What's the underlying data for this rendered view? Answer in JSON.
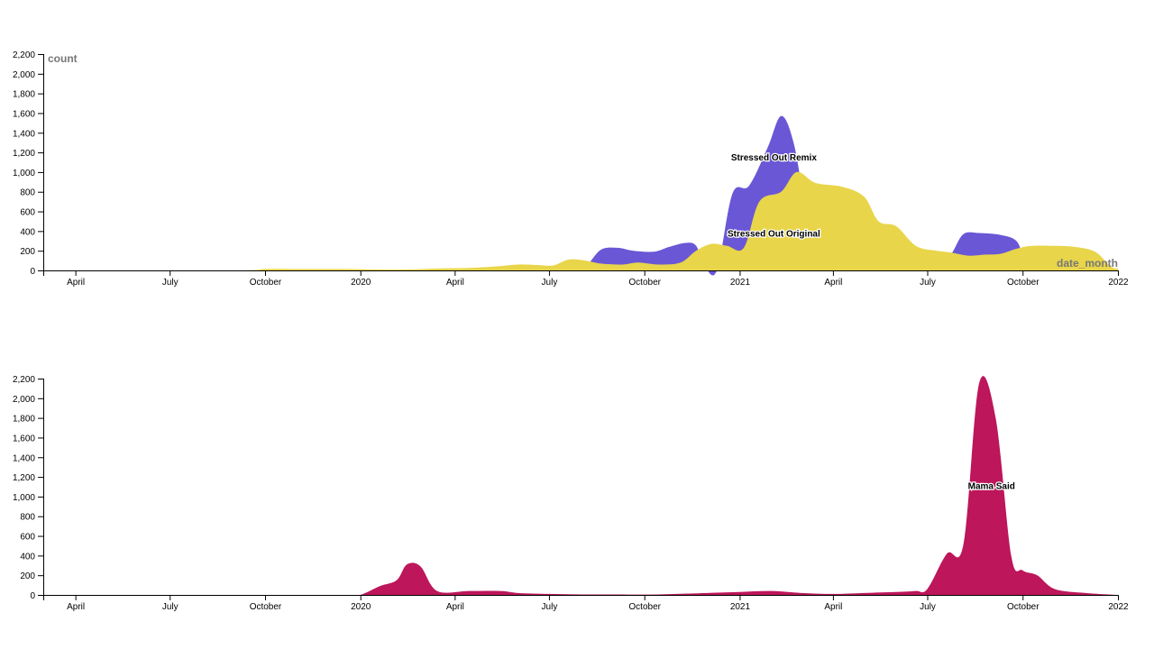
{
  "chart_data": [
    {
      "type": "area",
      "stacked": false,
      "x_axis": {
        "label": "date_month",
        "range": [
          "2019-03-01",
          "2022-01-01"
        ]
      },
      "y_axis": {
        "label": "count",
        "range": [
          0,
          2200
        ],
        "tick_step": 200
      },
      "x_ticks": [
        {
          "date": "2019-04-01",
          "label": "April"
        },
        {
          "date": "2019-07-01",
          "label": "July"
        },
        {
          "date": "2019-10-01",
          "label": "October"
        },
        {
          "date": "2020-01-01",
          "label": "2020"
        },
        {
          "date": "2020-04-01",
          "label": "April"
        },
        {
          "date": "2020-07-01",
          "label": "July"
        },
        {
          "date": "2020-10-01",
          "label": "October"
        },
        {
          "date": "2021-01-01",
          "label": "2021"
        },
        {
          "date": "2021-04-01",
          "label": "April"
        },
        {
          "date": "2021-07-01",
          "label": "July"
        },
        {
          "date": "2021-10-01",
          "label": "October"
        },
        {
          "date": "2022-01-01",
          "label": "2022"
        }
      ],
      "y_ticks": [
        "0",
        "200",
        "400",
        "600",
        "800",
        "1,000",
        "1,200",
        "1,400",
        "1,600",
        "1,800",
        "2,000",
        "2,200"
      ],
      "series": [
        {
          "name": "Stressed Out Remix",
          "color": "#6a57d6",
          "label_at": {
            "date": "2021-02-03",
            "value": 1150
          },
          "points": [
            [
              "2019-03-01",
              0
            ],
            [
              "2020-07-01",
              0
            ],
            [
              "2020-07-20",
              0
            ],
            [
              "2020-08-05",
              40
            ],
            [
              "2020-08-20",
              210
            ],
            [
              "2020-09-05",
              230
            ],
            [
              "2020-09-20",
              200
            ],
            [
              "2020-10-10",
              190
            ],
            [
              "2020-10-25",
              240
            ],
            [
              "2020-11-10",
              280
            ],
            [
              "2020-11-20",
              250
            ],
            [
              "2020-11-28",
              50
            ],
            [
              "2020-12-10",
              0
            ],
            [
              "2020-12-25",
              780
            ],
            [
              "2021-01-10",
              860
            ],
            [
              "2021-01-28",
              1250
            ],
            [
              "2021-02-10",
              1570
            ],
            [
              "2021-02-22",
              1300
            ],
            [
              "2021-03-05",
              650
            ],
            [
              "2021-03-12",
              300
            ],
            [
              "2021-03-25",
              330
            ],
            [
              "2021-04-15",
              320
            ],
            [
              "2021-05-10",
              300
            ],
            [
              "2021-05-25",
              200
            ],
            [
              "2021-06-15",
              150
            ],
            [
              "2021-07-01",
              80
            ],
            [
              "2021-07-15",
              60
            ],
            [
              "2021-07-25",
              180
            ],
            [
              "2021-08-05",
              370
            ],
            [
              "2021-08-20",
              380
            ],
            [
              "2021-09-10",
              360
            ],
            [
              "2021-09-25",
              300
            ],
            [
              "2021-10-05",
              110
            ],
            [
              "2021-10-25",
              100
            ],
            [
              "2021-11-15",
              80
            ],
            [
              "2021-12-05",
              80
            ],
            [
              "2021-12-20",
              40
            ],
            [
              "2022-01-01",
              10
            ]
          ]
        },
        {
          "name": "Stressed Out Original",
          "color": "#e8d54a",
          "label_at": {
            "date": "2021-02-03",
            "value": 375
          },
          "points": [
            [
              "2019-03-01",
              0
            ],
            [
              "2019-09-01",
              0
            ],
            [
              "2019-10-01",
              15
            ],
            [
              "2019-11-01",
              15
            ],
            [
              "2019-12-15",
              15
            ],
            [
              "2020-01-15",
              10
            ],
            [
              "2020-02-15",
              10
            ],
            [
              "2020-03-15",
              20
            ],
            [
              "2020-04-15",
              25
            ],
            [
              "2020-05-10",
              40
            ],
            [
              "2020-06-01",
              60
            ],
            [
              "2020-06-20",
              55
            ],
            [
              "2020-07-05",
              50
            ],
            [
              "2020-07-20",
              110
            ],
            [
              "2020-08-05",
              100
            ],
            [
              "2020-08-20",
              70
            ],
            [
              "2020-09-10",
              60
            ],
            [
              "2020-09-25",
              80
            ],
            [
              "2020-10-15",
              60
            ],
            [
              "2020-11-05",
              80
            ],
            [
              "2020-11-20",
              200
            ],
            [
              "2020-12-05",
              270
            ],
            [
              "2020-12-20",
              250
            ],
            [
              "2021-01-05",
              230
            ],
            [
              "2021-01-20",
              700
            ],
            [
              "2021-02-10",
              800
            ],
            [
              "2021-02-25",
              1000
            ],
            [
              "2021-03-15",
              890
            ],
            [
              "2021-04-10",
              850
            ],
            [
              "2021-05-01",
              750
            ],
            [
              "2021-05-15",
              500
            ],
            [
              "2021-06-01",
              450
            ],
            [
              "2021-06-20",
              250
            ],
            [
              "2021-07-10",
              200
            ],
            [
              "2021-07-25",
              180
            ],
            [
              "2021-08-10",
              150
            ],
            [
              "2021-08-25",
              160
            ],
            [
              "2021-09-10",
              170
            ],
            [
              "2021-09-25",
              220
            ],
            [
              "2021-10-10",
              250
            ],
            [
              "2021-11-01",
              250
            ],
            [
              "2021-11-20",
              240
            ],
            [
              "2021-12-10",
              190
            ],
            [
              "2021-12-25",
              40
            ],
            [
              "2022-01-01",
              20
            ]
          ]
        }
      ]
    },
    {
      "type": "area",
      "stacked": false,
      "x_axis": {
        "range": [
          "2019-03-01",
          "2022-01-01"
        ]
      },
      "y_axis": {
        "range": [
          0,
          2200
        ],
        "tick_step": 200
      },
      "x_ticks": [
        {
          "date": "2019-04-01",
          "label": "April"
        },
        {
          "date": "2019-07-01",
          "label": "July"
        },
        {
          "date": "2019-10-01",
          "label": "October"
        },
        {
          "date": "2020-01-01",
          "label": "2020"
        },
        {
          "date": "2020-04-01",
          "label": "April"
        },
        {
          "date": "2020-07-01",
          "label": "July"
        },
        {
          "date": "2020-10-01",
          "label": "October"
        },
        {
          "date": "2021-01-01",
          "label": "2021"
        },
        {
          "date": "2021-04-01",
          "label": "April"
        },
        {
          "date": "2021-07-01",
          "label": "July"
        },
        {
          "date": "2021-10-01",
          "label": "October"
        },
        {
          "date": "2022-01-01",
          "label": "2022"
        }
      ],
      "y_ticks": [
        "0",
        "200",
        "400",
        "600",
        "800",
        "1,000",
        "1,200",
        "1,400",
        "1,600",
        "1,800",
        "2,000",
        "2,200"
      ],
      "series": [
        {
          "name": "Mama Said",
          "color": "#bd165a",
          "label_at": {
            "date": "2021-09-01",
            "value": 1110
          },
          "points": [
            [
              "2019-03-01",
              0
            ],
            [
              "2019-12-20",
              0
            ],
            [
              "2020-01-01",
              0
            ],
            [
              "2020-01-20",
              90
            ],
            [
              "2020-02-05",
              150
            ],
            [
              "2020-02-15",
              310
            ],
            [
              "2020-02-28",
              290
            ],
            [
              "2020-03-15",
              40
            ],
            [
              "2020-04-15",
              40
            ],
            [
              "2020-05-15",
              40
            ],
            [
              "2020-06-01",
              20
            ],
            [
              "2020-07-01",
              10
            ],
            [
              "2020-08-01",
              5
            ],
            [
              "2020-09-01",
              5
            ],
            [
              "2020-10-15",
              5
            ],
            [
              "2020-12-01",
              20
            ],
            [
              "2021-01-01",
              30
            ],
            [
              "2021-02-01",
              40
            ],
            [
              "2021-03-01",
              20
            ],
            [
              "2021-04-01",
              10
            ],
            [
              "2021-05-01",
              20
            ],
            [
              "2021-06-01",
              30
            ],
            [
              "2021-06-20",
              40
            ],
            [
              "2021-07-01",
              60
            ],
            [
              "2021-07-20",
              420
            ],
            [
              "2021-08-05",
              520
            ],
            [
              "2021-08-20",
              2150
            ],
            [
              "2021-09-05",
              1800
            ],
            [
              "2021-09-20",
              400
            ],
            [
              "2021-10-01",
              250
            ],
            [
              "2021-10-15",
              200
            ],
            [
              "2021-11-01",
              60
            ],
            [
              "2021-12-01",
              20
            ],
            [
              "2022-01-01",
              0
            ]
          ]
        }
      ]
    }
  ]
}
